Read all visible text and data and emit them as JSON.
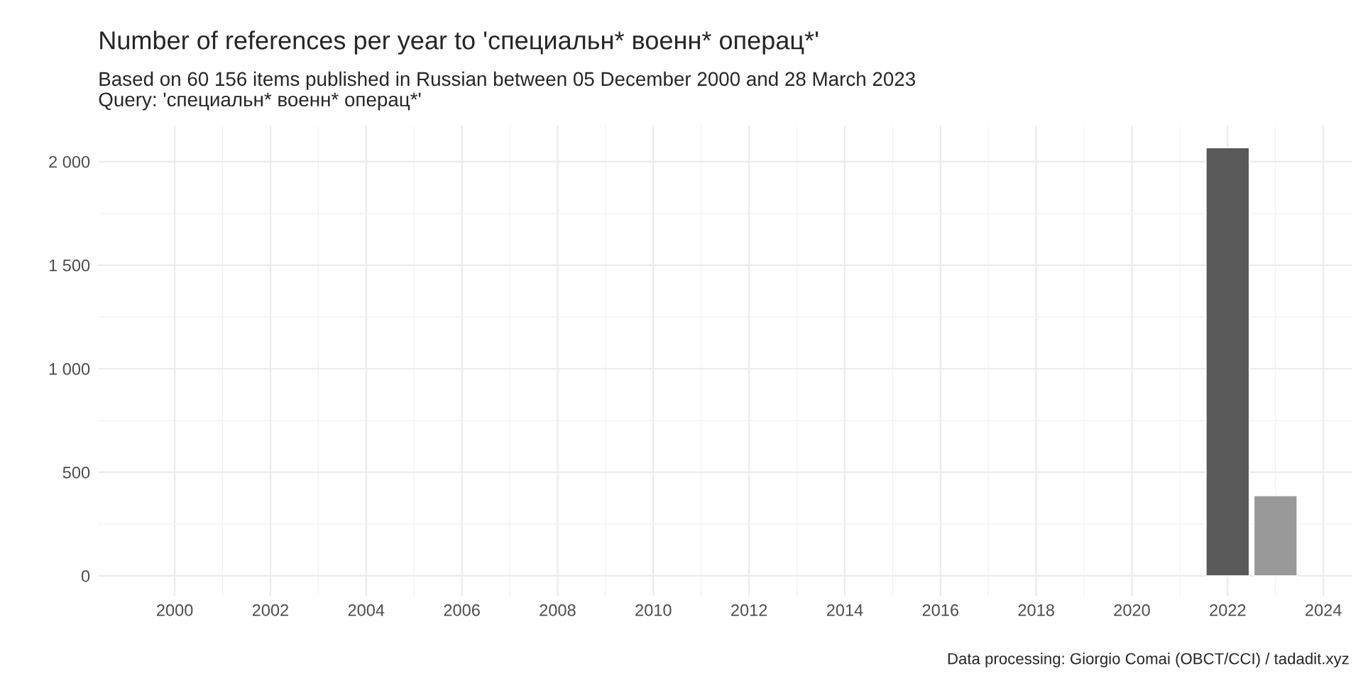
{
  "chart_data": {
    "type": "bar",
    "title": "Number of references per year to 'специальн* военн* операц*'",
    "subtitle": "Based on 60 156 items published in Russian between 05 December 2000 and 28 March 2023\nQuery: 'специальн* военн* операц*'",
    "annotations": [
      "Data processing: Giorgio Comai (OBCT/CCI) / tadadit.xyz"
    ],
    "x": [
      2022,
      2023
    ],
    "values": [
      2067,
      387
    ],
    "colors": [
      "#595959",
      "#999999"
    ],
    "xlim": [
      1998.4,
      2024.6
    ],
    "xticks": [
      2000,
      2002,
      2004,
      2006,
      2008,
      2010,
      2012,
      2014,
      2016,
      2018,
      2020,
      2022,
      2024
    ],
    "ylim": [
      -97,
      2172
    ],
    "yticks": [
      0,
      {
        "value": 500,
        "label": "500"
      },
      {
        "value": 1000,
        "label": "1 000"
      },
      {
        "value": 1500,
        "label": "1 500"
      },
      {
        "value": 2000,
        "label": "2 000"
      }
    ],
    "grid": true
  }
}
